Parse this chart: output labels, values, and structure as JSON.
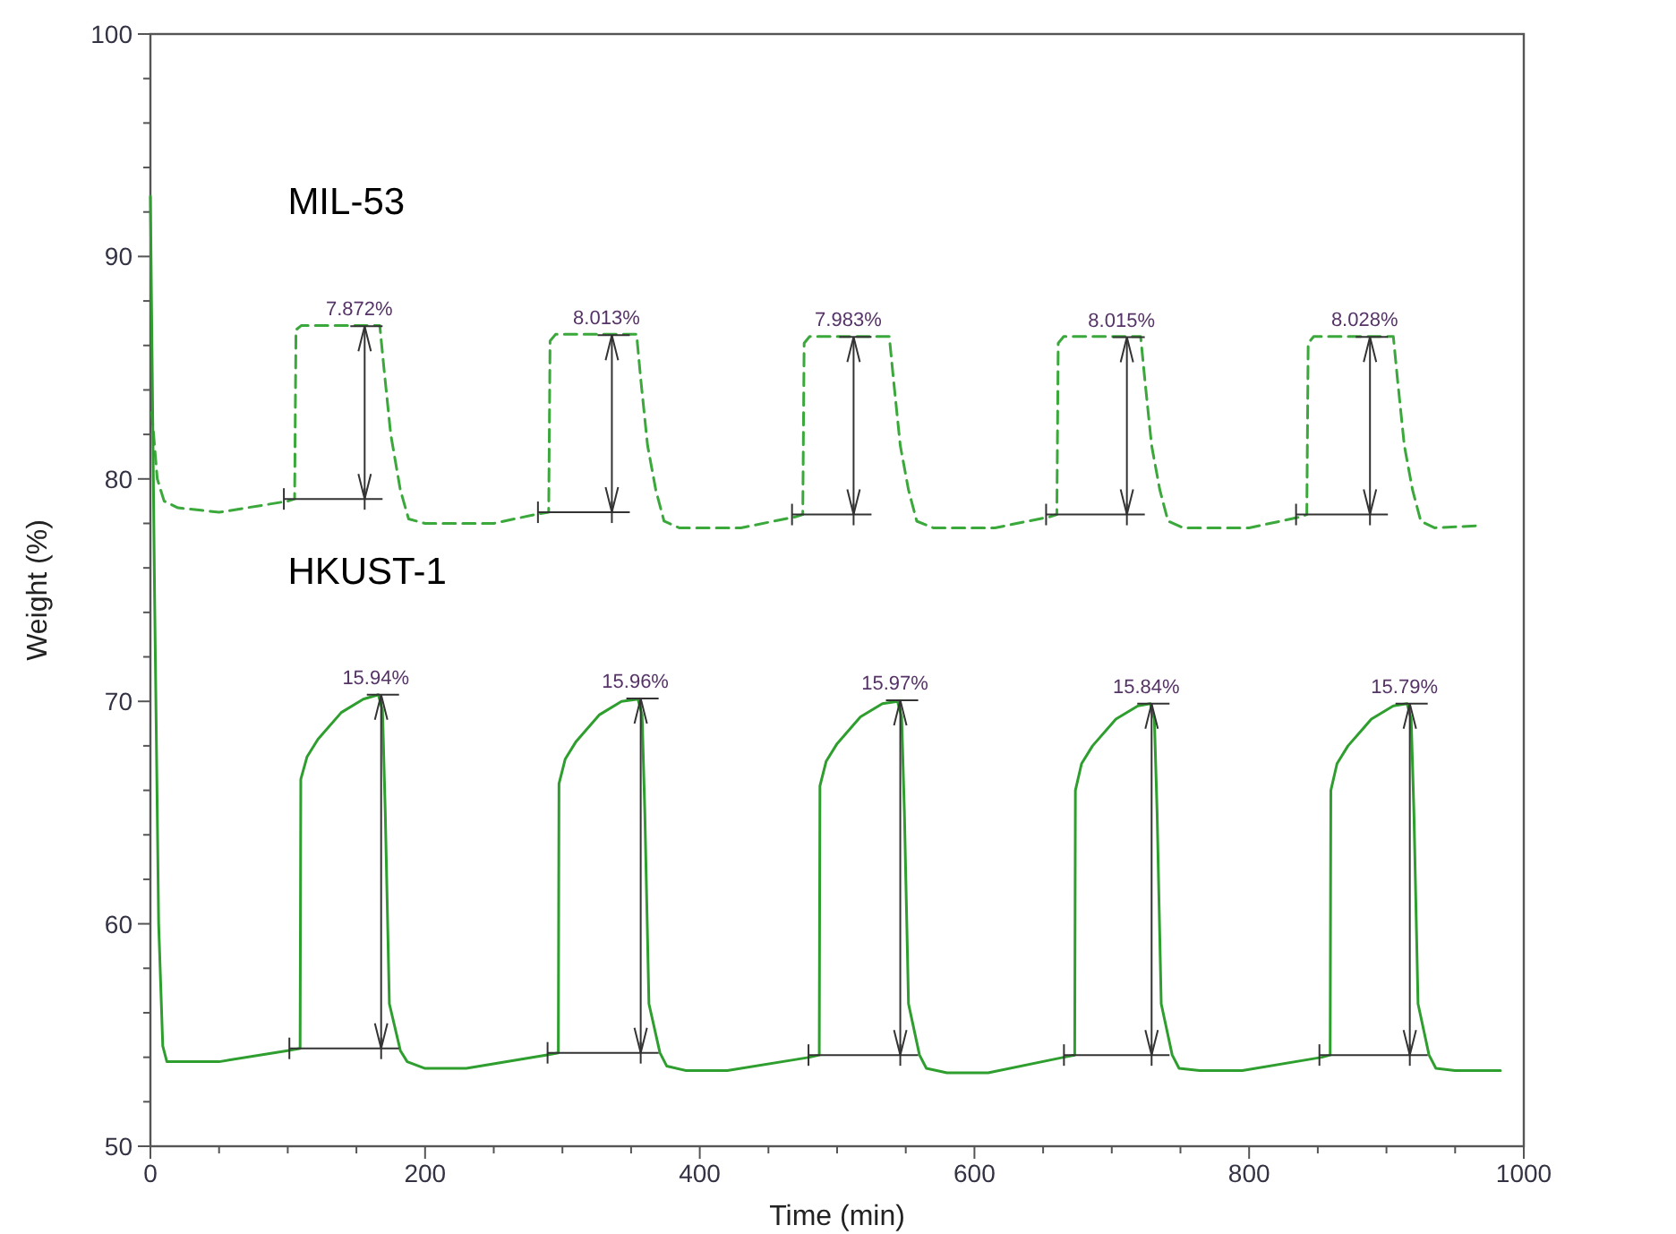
{
  "chart_data": {
    "type": "line",
    "xlabel": "Time (min)",
    "ylabel": "Weight (%)",
    "xlim": [
      0,
      1000
    ],
    "ylim": [
      50,
      100
    ],
    "xticks": [
      0,
      {
        "value": 50,
        "label": null
      },
      {
        "value": 100,
        "label": null
      },
      {
        "value": 150,
        "label": null
      },
      200,
      {
        "value": 250,
        "label": null
      },
      {
        "value": 300,
        "label": null
      },
      {
        "value": 350,
        "label": null
      },
      400,
      {
        "value": 450,
        "label": null
      },
      {
        "value": 500,
        "label": null
      },
      {
        "value": 550,
        "label": null
      },
      600,
      {
        "value": 650,
        "label": null
      },
      {
        "value": 700,
        "label": null
      },
      {
        "value": 750,
        "label": null
      },
      800,
      {
        "value": 850,
        "label": null
      },
      {
        "value": 900,
        "label": null
      },
      {
        "value": 950,
        "label": null
      },
      1000
    ],
    "yticks": [
      50,
      {
        "value": 52,
        "label": null
      },
      {
        "value": 54,
        "label": null
      },
      {
        "value": 56,
        "label": null
      },
      {
        "value": 58,
        "label": null
      },
      60,
      {
        "value": 62,
        "label": null
      },
      {
        "value": 64,
        "label": null
      },
      {
        "value": 66,
        "label": null
      },
      {
        "value": 68,
        "label": null
      },
      70,
      {
        "value": 72,
        "label": null
      },
      {
        "value": 74,
        "label": null
      },
      {
        "value": 76,
        "label": null
      },
      {
        "value": 78,
        "label": null
      },
      80,
      {
        "value": 82,
        "label": null
      },
      {
        "value": 84,
        "label": null
      },
      {
        "value": 86,
        "label": null
      },
      {
        "value": 88,
        "label": null
      },
      90,
      {
        "value": 92,
        "label": null
      },
      {
        "value": 94,
        "label": null
      },
      {
        "value": 96,
        "label": null
      },
      {
        "value": 98,
        "label": null
      },
      100
    ],
    "grid": false,
    "legend": "left",
    "series": [
      {
        "name": "MIL-53",
        "color": "#3aa83a",
        "line_style": "dashed",
        "x": [
          1,
          5,
          10,
          20,
          50,
          100,
          105,
          106,
          110,
          167,
          170,
          175,
          182,
          188,
          200,
          250,
          280,
          290,
          291,
          295,
          354,
          357,
          362,
          368,
          374,
          385,
          430,
          470,
          475,
          476,
          480,
          538,
          541,
          546,
          552,
          558,
          570,
          615,
          655,
          660,
          661,
          665,
          721,
          724,
          729,
          735,
          741,
          752,
          800,
          838,
          842,
          843,
          847,
          905,
          908,
          913,
          919,
          925,
          935,
          969
        ],
        "values": [
          83,
          80,
          79,
          78.7,
          78.5,
          79,
          79.1,
          86.7,
          86.9,
          86.9,
          85,
          82,
          79.5,
          78.2,
          78,
          78,
          78.4,
          78.5,
          86.2,
          86.5,
          86.5,
          84.5,
          81.5,
          79.5,
          78.1,
          77.8,
          77.8,
          78.3,
          78.4,
          86.1,
          86.4,
          86.4,
          84.5,
          81.5,
          79.5,
          78.1,
          77.8,
          77.8,
          78.3,
          78.4,
          86.1,
          86.4,
          86.4,
          84.5,
          81.5,
          79.5,
          78.1,
          77.8,
          77.8,
          78.3,
          78.4,
          86.1,
          86.4,
          86.4,
          84.5,
          81.5,
          79.5,
          78.1,
          77.8,
          77.9
        ]
      },
      {
        "name": "HKUST-1",
        "color": "#2e9e2e",
        "line_style": "solid",
        "x": [
          0,
          3,
          6,
          9,
          12,
          50,
          100,
          109,
          109.5,
          114,
          122,
          139,
          155,
          166,
          169,
          171,
          174,
          182,
          187,
          200,
          230,
          288,
          297,
          297.5,
          302,
          310,
          327,
          343,
          355,
          358,
          360,
          363,
          371,
          376,
          390,
          420,
          480,
          487,
          487.5,
          492,
          500,
          517,
          533,
          544,
          547,
          549,
          552,
          560,
          565,
          580,
          610,
          665,
          673,
          673.5,
          678,
          686,
          703,
          719,
          728,
          731,
          733,
          736,
          744,
          749,
          764,
          795,
          853,
          859,
          859.5,
          864,
          872,
          889,
          905,
          915,
          918,
          920,
          923,
          931,
          936,
          950,
          983
        ],
        "values": [
          92.7,
          75,
          60,
          54.5,
          53.8,
          53.8,
          54.3,
          54.4,
          66.5,
          67.5,
          68.3,
          69.5,
          70.1,
          70.3,
          69.6,
          65,
          56.4,
          54.3,
          53.8,
          53.5,
          53.5,
          54.1,
          54.2,
          66.3,
          67.4,
          68.2,
          69.4,
          70,
          70.1,
          69.4,
          65,
          56.4,
          54.2,
          53.6,
          53.4,
          53.4,
          54,
          54.1,
          66.2,
          67.3,
          68.1,
          69.3,
          69.9,
          70,
          69.3,
          65,
          56.4,
          54.1,
          53.5,
          53.3,
          53.3,
          54,
          54.1,
          66,
          67.2,
          68,
          69.2,
          69.8,
          69.9,
          69.2,
          65,
          56.4,
          54.1,
          53.5,
          53.4,
          53.4,
          54,
          54.1,
          66,
          67.2,
          68,
          69.2,
          69.8,
          69.9,
          69.2,
          65,
          56.4,
          54.1,
          53.5,
          53.4,
          53.4
        ]
      }
    ],
    "annotations": [
      {
        "text": "7.872%",
        "x": 156,
        "y": 86.87
      },
      {
        "text": "8.013%",
        "x": 336,
        "y": 86.46
      },
      {
        "text": "7.983%",
        "x": 512,
        "y": 86.38
      },
      {
        "text": "8.015%",
        "x": 711,
        "y": 86.37
      },
      {
        "text": "8.028%",
        "x": 888,
        "y": 86.38
      },
      {
        "text": "15.94%",
        "x": 168,
        "y": 70.3
      },
      {
        "text": "15.96%",
        "x": 357,
        "y": 70.13
      },
      {
        "text": "15.97%",
        "x": 546,
        "y": 70.05
      },
      {
        "text": "15.84%",
        "x": 729,
        "y": 69.9
      },
      {
        "text": "15.79%",
        "x": 917,
        "y": 69.9
      }
    ]
  }
}
